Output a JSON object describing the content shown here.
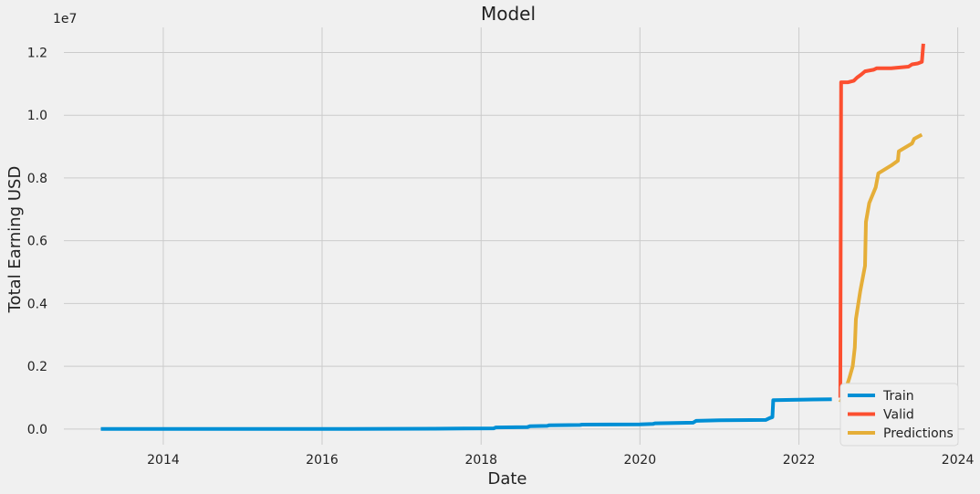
{
  "chart_data": {
    "type": "line",
    "title": "Model",
    "xlabel": "Date",
    "ylabel": "Total Earning USD",
    "y_offset_label": "1e7",
    "xlim": [
      "2012-10-01",
      "2024-02-01"
    ],
    "ylim": [
      -500000,
      12800000
    ],
    "x_ticks": [
      "2014-01-01",
      "2016-01-01",
      "2018-01-01",
      "2020-01-01",
      "2022-01-01",
      "2024-01-01"
    ],
    "x_tick_labels": [
      "2014",
      "2016",
      "2018",
      "2020",
      "2022",
      "2024"
    ],
    "y_ticks": [
      0,
      2000000,
      4000000,
      6000000,
      8000000,
      10000000,
      12000000
    ],
    "y_tick_labels": [
      "0.0",
      "0.2",
      "0.4",
      "0.6",
      "0.8",
      "1.0",
      "1.2"
    ],
    "grid": true,
    "legend_position": "bottom-right",
    "series": [
      {
        "name": "Train",
        "color": "#008fd5",
        "points": [
          [
            "2013-03-20",
            0
          ],
          [
            "2014-06-01",
            0
          ],
          [
            "2016-01-01",
            0
          ],
          [
            "2017-06-01",
            10000
          ],
          [
            "2018-03-01",
            20000
          ],
          [
            "2018-03-10",
            50000
          ],
          [
            "2018-08-01",
            60000
          ],
          [
            "2018-08-15",
            90000
          ],
          [
            "2018-11-01",
            100000
          ],
          [
            "2018-11-10",
            120000
          ],
          [
            "2019-04-01",
            130000
          ],
          [
            "2019-04-10",
            140000
          ],
          [
            "2020-01-01",
            150000
          ],
          [
            "2020-03-01",
            160000
          ],
          [
            "2020-03-10",
            180000
          ],
          [
            "2020-09-01",
            200000
          ],
          [
            "2020-09-15",
            260000
          ],
          [
            "2021-01-01",
            280000
          ],
          [
            "2021-08-01",
            290000
          ],
          [
            "2021-08-20",
            350000
          ],
          [
            "2021-09-01",
            380000
          ],
          [
            "2021-09-05",
            920000
          ],
          [
            "2022-06-01",
            950000
          ]
        ]
      },
      {
        "name": "Valid",
        "color": "#fc4f30",
        "points": [
          [
            "2022-07-10",
            1000000
          ],
          [
            "2022-07-14",
            11050000
          ],
          [
            "2022-08-15",
            11050000
          ],
          [
            "2022-09-10",
            11100000
          ],
          [
            "2022-09-25",
            11200000
          ],
          [
            "2022-10-15",
            11300000
          ],
          [
            "2022-11-01",
            11400000
          ],
          [
            "2022-12-10",
            11450000
          ],
          [
            "2022-12-25",
            11500000
          ],
          [
            "2023-03-01",
            11500000
          ],
          [
            "2023-05-20",
            11550000
          ],
          [
            "2023-06-05",
            11620000
          ],
          [
            "2023-07-01",
            11650000
          ],
          [
            "2023-07-20",
            11700000
          ],
          [
            "2023-07-27",
            12280000
          ]
        ]
      },
      {
        "name": "Predictions",
        "color": "#e5ae38",
        "points": [
          [
            "2022-07-10",
            850000
          ],
          [
            "2022-08-01",
            1200000
          ],
          [
            "2022-08-20",
            1600000
          ],
          [
            "2022-09-05",
            2000000
          ],
          [
            "2022-09-15",
            2600000
          ],
          [
            "2022-09-20",
            3500000
          ],
          [
            "2022-10-10",
            4400000
          ],
          [
            "2022-11-01",
            5200000
          ],
          [
            "2022-11-05",
            6600000
          ],
          [
            "2022-11-20",
            7200000
          ],
          [
            "2022-12-20",
            7700000
          ],
          [
            "2023-01-01",
            8150000
          ],
          [
            "2023-03-01",
            8400000
          ],
          [
            "2023-04-01",
            8550000
          ],
          [
            "2023-04-05",
            8850000
          ],
          [
            "2023-06-05",
            9100000
          ],
          [
            "2023-06-15",
            9250000
          ],
          [
            "2023-07-20",
            9380000
          ]
        ]
      }
    ]
  }
}
